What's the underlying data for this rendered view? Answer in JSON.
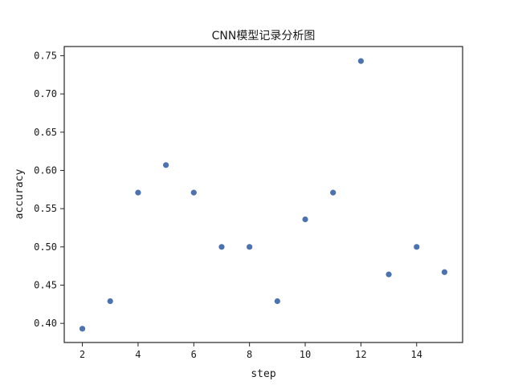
{
  "chart_data": {
    "type": "scatter",
    "title": "CNN模型记录分析图",
    "xlabel": "step",
    "ylabel": "accuracy",
    "xlim": [
      1.35,
      15.65
    ],
    "ylim": [
      0.375,
      0.762
    ],
    "xticks": [
      2,
      4,
      6,
      8,
      10,
      12,
      14
    ],
    "yticks": [
      0.4,
      0.45,
      0.5,
      0.55,
      0.6,
      0.65,
      0.7,
      0.75
    ],
    "xtick_labels": [
      "2",
      "4",
      "6",
      "8",
      "10",
      "12",
      "14"
    ],
    "ytick_labels": [
      "0.40",
      "0.45",
      "0.50",
      "0.55",
      "0.60",
      "0.65",
      "0.70",
      "0.75"
    ],
    "grid": false,
    "marker_color": "#4c72b0",
    "points": [
      {
        "x": 2,
        "y": 0.393
      },
      {
        "x": 3,
        "y": 0.429
      },
      {
        "x": 4,
        "y": 0.571
      },
      {
        "x": 5,
        "y": 0.607
      },
      {
        "x": 6,
        "y": 0.571
      },
      {
        "x": 7,
        "y": 0.5
      },
      {
        "x": 8,
        "y": 0.5
      },
      {
        "x": 9,
        "y": 0.429
      },
      {
        "x": 10,
        "y": 0.536
      },
      {
        "x": 11,
        "y": 0.571
      },
      {
        "x": 12,
        "y": 0.743
      },
      {
        "x": 13,
        "y": 0.464
      },
      {
        "x": 14,
        "y": 0.5
      },
      {
        "x": 15,
        "y": 0.467
      }
    ]
  }
}
